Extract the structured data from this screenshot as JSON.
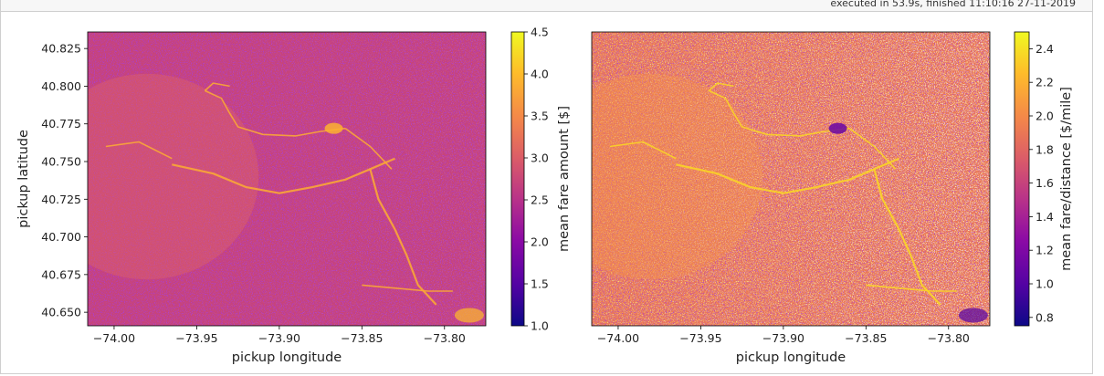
{
  "cell": {
    "exec_status": "executed in 53.9s, finished 11:10:16 27-11-2019"
  },
  "chart_data": [
    {
      "type": "heatmap",
      "title": "",
      "xlabel": "pickup longitude",
      "ylabel": "pickup latitude",
      "colorbar_label": "mean fare amount [$]",
      "colormap": "plasma",
      "xlim": [
        -74.016,
        -73.775
      ],
      "ylim": [
        40.641,
        40.836
      ],
      "xticks": [
        -74.0,
        -73.95,
        -73.9,
        -73.85,
        -73.8
      ],
      "xtick_labels": [
        "−74.00",
        "−73.95",
        "−73.90",
        "−73.85",
        "−73.80"
      ],
      "yticks": [
        40.65,
        40.675,
        40.7,
        40.725,
        40.75,
        40.775,
        40.8,
        40.825
      ],
      "ytick_labels": [
        "40.650",
        "40.675",
        "40.700",
        "40.725",
        "40.750",
        "40.775",
        "40.800",
        "40.825"
      ],
      "clim": [
        1.0,
        4.5
      ],
      "cbar_ticks": [
        1.0,
        1.5,
        2.0,
        2.5,
        3.0,
        3.5,
        4.0,
        4.5
      ],
      "cbar_tick_labels": [
        "1.0",
        "1.5",
        "2.0",
        "2.5",
        "3.0",
        "3.5",
        "4.0",
        "4.5"
      ],
      "background_value": 2.7
    },
    {
      "type": "heatmap",
      "title": "",
      "xlabel": "pickup longitude",
      "ylabel": "",
      "colorbar_label": "mean fare/distance [$/mile]",
      "colormap": "plasma",
      "xlim": [
        -74.016,
        -73.775
      ],
      "ylim": [
        40.641,
        40.836
      ],
      "xticks": [
        -74.0,
        -73.95,
        -73.9,
        -73.85,
        -73.8
      ],
      "xtick_labels": [
        "−74.00",
        "−73.95",
        "−73.90",
        "−73.85",
        "−73.80"
      ],
      "clim": [
        0.75,
        2.5
      ],
      "cbar_ticks": [
        0.8,
        1.0,
        1.2,
        1.4,
        1.6,
        1.8,
        2.0,
        2.2,
        2.4
      ],
      "cbar_tick_labels": [
        "0.8",
        "1.0",
        "1.2",
        "1.4",
        "1.6",
        "1.8",
        "2.0",
        "2.2",
        "2.4"
      ],
      "background_value": 1.9
    }
  ]
}
